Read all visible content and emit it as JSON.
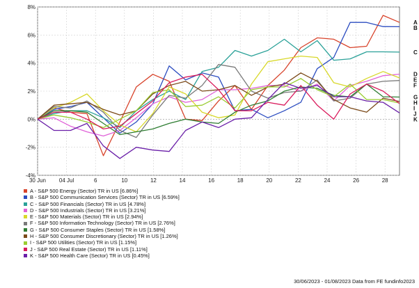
{
  "chart_data": {
    "type": "line",
    "x_labels": [
      "30 Jun",
      "04 Jul",
      "6",
      "10",
      "12",
      "14",
      "16",
      "18",
      "20",
      "22",
      "24",
      "26",
      "28"
    ],
    "y_ticks": [
      "8%",
      "6%",
      "4%",
      "2%",
      "0%",
      "-2%",
      "-4%"
    ],
    "ylim": [
      -4,
      8
    ],
    "x_count": 23,
    "grid": true,
    "legend_position": "bottom",
    "series": [
      {
        "id": "A",
        "name": "A - S&P 500 Energy (Sector) TR in US [6.86%]",
        "color": "#d8432b",
        "values": [
          0,
          0.8,
          0.5,
          0.4,
          -2.6,
          -0.2,
          2.3,
          3.2,
          2.7,
          0.0,
          -0.1,
          1.3,
          2.4,
          0.7,
          2.4,
          3.5,
          5.1,
          5.8,
          5.7,
          5.1,
          5.2,
          7.4,
          6.9
        ]
      },
      {
        "id": "B",
        "name": "B - S&P 500 Communication Services (Sector) TR in US [6.59%]",
        "color": "#2b4cc0",
        "values": [
          0,
          0.7,
          0.9,
          1.2,
          0.1,
          -1.0,
          -0.2,
          1.1,
          3.8,
          2.8,
          3.3,
          3.0,
          0.6,
          0.7,
          0.1,
          0.6,
          1.2,
          3.6,
          4.4,
          6.9,
          6.9,
          6.6,
          6.59
        ]
      },
      {
        "id": "C",
        "name": "C - S&P 500 Financials (Sector) TR in US [4.78%]",
        "color": "#2aa198",
        "values": [
          0,
          0.4,
          0.6,
          0.6,
          0.1,
          -0.6,
          0.6,
          1.4,
          2.0,
          1.4,
          3.4,
          3.7,
          4.9,
          4.5,
          4.9,
          5.7,
          4.8,
          5.6,
          4.2,
          4.3,
          4.8,
          4.8,
          4.78
        ]
      },
      {
        "id": "D",
        "name": "D - S&P 500 Industrials (Sector) TR in US [3.21%]",
        "color": "#e062d8",
        "values": [
          0,
          0.1,
          -0.5,
          -0.9,
          -1.2,
          -0.8,
          0.1,
          1.1,
          1.6,
          1.2,
          1.4,
          2.1,
          2.1,
          2.2,
          2.4,
          2.4,
          2.0,
          2.5,
          1.3,
          2.4,
          2.7,
          3.1,
          3.21
        ]
      },
      {
        "id": "E",
        "name": "E - S&P 500 Materials (Sector) TR in US [2.94%]",
        "color": "#d8d82a",
        "values": [
          0,
          0.8,
          1.2,
          1.8,
          0.6,
          -0.4,
          -0.9,
          0.4,
          2.3,
          1.8,
          0.5,
          0.1,
          0.3,
          2.5,
          4.1,
          4.3,
          4.5,
          4.4,
          2.6,
          2.3,
          2.9,
          3.4,
          2.94
        ]
      },
      {
        "id": "F",
        "name": "F - S&P 500 Information Technology (Sector) TR in US [2.76%]",
        "color": "#7a7a7a",
        "values": [
          0,
          0.9,
          0.8,
          1.3,
          0.5,
          -0.8,
          -1.3,
          0.3,
          1.7,
          1.5,
          2.4,
          3.9,
          3.7,
          2.0,
          1.5,
          1.9,
          2.0,
          2.8,
          1.3,
          1.5,
          2.5,
          2.7,
          2.76
        ]
      },
      {
        "id": "G",
        "name": "G - S&P 500 Consumer Staples (Sector) TR in US [1.58%]",
        "color": "#2e7d32",
        "values": [
          0,
          0.6,
          0.6,
          0.5,
          -0.3,
          -1.1,
          -0.9,
          -0.7,
          -0.3,
          0.0,
          -0.2,
          -0.3,
          0.5,
          1.0,
          1.3,
          2.0,
          2.3,
          2.2,
          1.7,
          1.6,
          2.5,
          1.6,
          1.58
        ]
      },
      {
        "id": "H",
        "name": "H - S&P 500 Consumer Discretionary (Sector) TR in US [1.26%]",
        "color": "#7b4a19",
        "values": [
          0,
          1.0,
          1.1,
          1.2,
          0.7,
          0.3,
          0.6,
          1.8,
          2.4,
          2.7,
          2.0,
          2.1,
          2.4,
          1.7,
          2.3,
          2.5,
          3.3,
          2.7,
          1.4,
          0.8,
          0.5,
          1.5,
          1.26
        ]
      },
      {
        "id": "I",
        "name": "I - S&P 500 Utilities (Sector) TR in US [1.15%]",
        "color": "#9acd32",
        "values": [
          0,
          0.3,
          0.1,
          -0.2,
          -0.6,
          0.0,
          0.6,
          1.9,
          2.1,
          0.9,
          1.0,
          1.6,
          0.8,
          2.1,
          2.3,
          2.3,
          2.9,
          2.1,
          1.6,
          2.5,
          1.4,
          1.4,
          1.15
        ]
      },
      {
        "id": "J",
        "name": "J - S&P 500 Real Estate (Sector) TR in US [1.11%]",
        "color": "#d91b5c",
        "values": [
          0,
          0.5,
          0.5,
          0.0,
          -0.7,
          -0.5,
          0.4,
          1.3,
          2.6,
          3.0,
          3.2,
          2.1,
          0.6,
          0.6,
          1.2,
          1.0,
          2.4,
          1.0,
          0.0,
          1.8,
          2.5,
          2.0,
          1.11
        ]
      },
      {
        "id": "K",
        "name": "K - S&P 500 Health Care (Sector) TR in US [0.45%]",
        "color": "#6a1fa8",
        "values": [
          0,
          -0.8,
          -0.8,
          -0.3,
          -1.9,
          -2.8,
          -2.0,
          -2.2,
          -2.3,
          -0.8,
          -0.2,
          -0.6,
          0.0,
          0.1,
          1.4,
          2.6,
          2.2,
          2.4,
          1.6,
          1.6,
          1.3,
          1.2,
          0.45
        ]
      }
    ]
  },
  "footer": {
    "text": "30/06/2023 - 01/08/2023 Data from FE fundinfo2023"
  }
}
